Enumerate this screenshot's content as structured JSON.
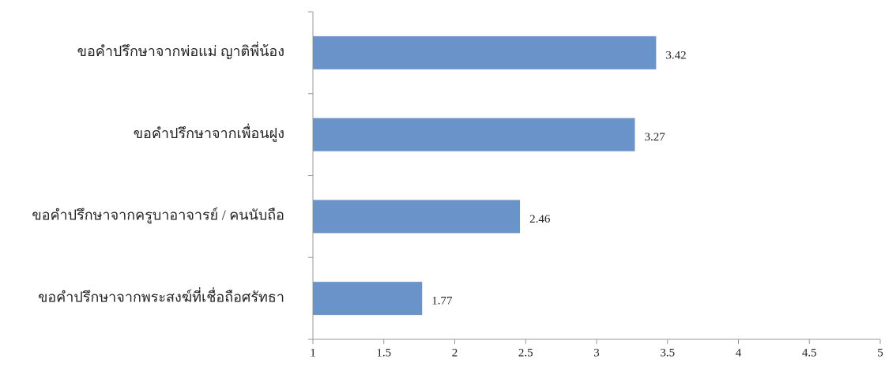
{
  "chart_data": {
    "type": "bar",
    "orientation": "horizontal",
    "categories": [
      "ขอคำปรึกษาจากพ่อแม่ ญาติพี่น้อง",
      "ขอคำปรึกษาจากเพื่อนฝูง",
      "ขอคำปรึกษาจากครูบาอาจารย์ / คนนับถือ",
      "ขอคำปรึกษาจากพระสงฆ์ที่เชื่อถือศรัทธา"
    ],
    "values": [
      3.42,
      3.27,
      2.46,
      1.77
    ],
    "color": "#6a94c9",
    "xlim": [
      1,
      5
    ],
    "xticks": [
      1,
      1.5,
      2,
      2.5,
      3,
      3.5,
      4,
      4.5,
      5
    ],
    "grid": false
  }
}
